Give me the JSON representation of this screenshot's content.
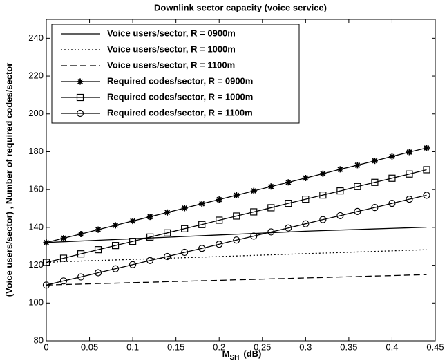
{
  "chart_data": {
    "type": "line",
    "title": "Downlink sector capacity (voice service)",
    "xlabel": {
      "base": "M",
      "sub": "SH",
      "rest": "(dB)"
    },
    "ylabel": "(Voice users/sector)  ,  Number of required codes/sector",
    "x": [
      0,
      0.02,
      0.04,
      0.06,
      0.08,
      0.1,
      0.12,
      0.14,
      0.16,
      0.18,
      0.2,
      0.22,
      0.24,
      0.26,
      0.28,
      0.3,
      0.32,
      0.34,
      0.36,
      0.38,
      0.4,
      0.42,
      0.44
    ],
    "xlim": [
      0,
      0.45
    ],
    "xticks": [
      0,
      0.05,
      0.1,
      0.15,
      0.2,
      0.25,
      0.3,
      0.35,
      0.4,
      0.45
    ],
    "ylim": [
      80,
      250
    ],
    "yticks": [
      80,
      100,
      120,
      140,
      160,
      180,
      200,
      220,
      240
    ],
    "legend": "upper-left",
    "series": [
      {
        "name": "Voice users/sector, R = 0900m",
        "color": "#000000",
        "dash": "solid",
        "marker": "none",
        "values": [
          132,
          132.4,
          132.8,
          133.2,
          133.6,
          134,
          134.4,
          134.8,
          135.2,
          135.6,
          136,
          136.4,
          136.8,
          137.2,
          137.6,
          138,
          138.3,
          138.6,
          138.9,
          139.2,
          139.5,
          139.8,
          140.1
        ]
      },
      {
        "name": "Voice users/sector, R = 1000m",
        "color": "#000000",
        "dash": "dotted",
        "marker": "none",
        "values": [
          121.5,
          121.9,
          122.2,
          122.5,
          122.8,
          123.1,
          123.4,
          123.7,
          124,
          124.3,
          124.6,
          124.9,
          125.2,
          125.5,
          125.8,
          126.1,
          126.4,
          126.7,
          127,
          127.3,
          127.6,
          127.9,
          128.2
        ]
      },
      {
        "name": "Voice users/sector, R = 1100m",
        "color": "#000000",
        "dash": "dashed",
        "marker": "none",
        "values": [
          109.5,
          109.8,
          110,
          110.3,
          110.5,
          110.8,
          111,
          111.3,
          111.5,
          111.8,
          112,
          112.3,
          112.5,
          112.8,
          113,
          113.3,
          113.5,
          113.8,
          114,
          114.3,
          114.5,
          114.8,
          115
        ]
      },
      {
        "name": "Required codes/sector, R = 0900m",
        "color": "#000000",
        "dash": "solid",
        "marker": "star",
        "values": [
          132,
          134.3,
          136.5,
          138.8,
          141.1,
          143.4,
          145.6,
          147.9,
          150.2,
          152.5,
          154.7,
          157,
          159.3,
          161.6,
          163.8,
          166.1,
          168.4,
          170.7,
          172.9,
          175.2,
          177.5,
          179.8,
          182
        ]
      },
      {
        "name": "Required codes/sector, R = 1000m",
        "color": "#000000",
        "dash": "solid",
        "marker": "square",
        "values": [
          121.5,
          123.7,
          126,
          128.2,
          130.4,
          132.6,
          134.9,
          137.1,
          139.3,
          141.5,
          143.8,
          146,
          148.2,
          150.4,
          152.7,
          154.9,
          157.1,
          159.3,
          161.6,
          163.8,
          166,
          168.2,
          170.5
        ]
      },
      {
        "name": "Required codes/sector, R = 1100m",
        "color": "#000000",
        "dash": "solid",
        "marker": "circle",
        "values": [
          109.5,
          111.7,
          113.8,
          116,
          118.1,
          120.3,
          122.5,
          124.6,
          126.8,
          128.9,
          131.1,
          133.3,
          135.4,
          137.6,
          139.7,
          141.9,
          144.1,
          146.2,
          148.4,
          150.5,
          152.7,
          154.9,
          157
        ]
      }
    ]
  }
}
